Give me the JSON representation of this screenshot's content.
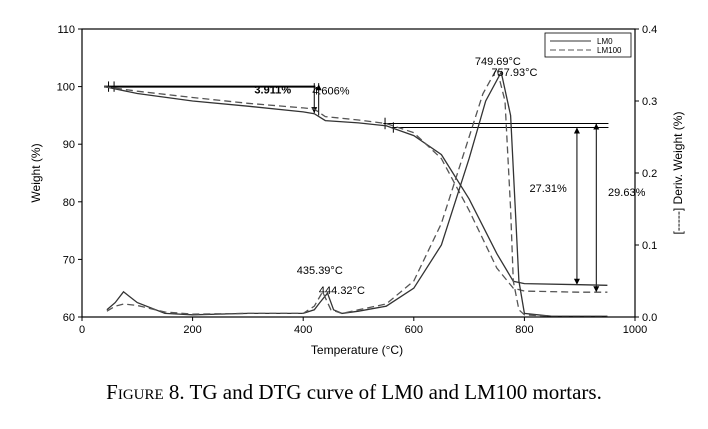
{
  "chart_data": {
    "type": "line",
    "xlabel": "Temperature (°C)",
    "ylabel": "Weight (%)",
    "y2label": "[-----] Deriv. Weight (%)",
    "xlim": [
      0,
      1000
    ],
    "ylim": [
      60,
      110
    ],
    "y2lim": [
      0,
      0.4
    ],
    "x_ticks": [
      0,
      200,
      400,
      600,
      800,
      1000
    ],
    "y_ticks": [
      60,
      70,
      80,
      90,
      100,
      110
    ],
    "y2_ticks": [
      "0.0",
      "0.1",
      "0.2",
      "0.3",
      "0.4"
    ],
    "legend_position": "top-right",
    "series": [
      {
        "name": "LM0",
        "kind": "TG",
        "axis": "left",
        "style": "solid",
        "x": [
          40,
          100,
          200,
          300,
          400,
          420,
          440,
          500,
          550,
          600,
          650,
          700,
          750,
          780,
          800,
          900,
          950
        ],
        "y": [
          100,
          98.8,
          97.5,
          96.6,
          95.6,
          95.3,
          94.1,
          93.7,
          93.2,
          91.5,
          88.2,
          80.5,
          71,
          66.2,
          65.8,
          65.6,
          65.5
        ]
      },
      {
        "name": "LM100",
        "kind": "TG",
        "axis": "left",
        "style": "dashed",
        "x": [
          40,
          100,
          200,
          300,
          400,
          420,
          440,
          500,
          550,
          600,
          650,
          700,
          750,
          780,
          800,
          900,
          950
        ],
        "y": [
          100,
          99.2,
          98.1,
          97.1,
          96.3,
          96.1,
          94.8,
          94.2,
          93.6,
          92,
          87.5,
          78.5,
          68.5,
          65,
          64.5,
          64.3,
          64.3
        ]
      },
      {
        "name": "LM0",
        "kind": "DTG",
        "axis": "right",
        "style": "solid",
        "x": [
          45,
          60,
          75,
          100,
          150,
          200,
          300,
          400,
          420,
          430,
          444,
          455,
          470,
          500,
          550,
          600,
          650,
          700,
          730,
          758,
          775,
          790,
          800,
          850,
          950
        ],
        "y": [
          0.01,
          0.02,
          0.035,
          0.02,
          0.005,
          0.003,
          0.005,
          0.005,
          0.01,
          0.02,
          0.033,
          0.01,
          0.005,
          0.008,
          0.015,
          0.04,
          0.1,
          0.22,
          0.3,
          0.34,
          0.28,
          0.05,
          0.005,
          0.001,
          0.001
        ]
      },
      {
        "name": "LM100",
        "kind": "DTG",
        "axis": "right",
        "style": "dashed",
        "x": [
          45,
          60,
          75,
          100,
          150,
          200,
          300,
          400,
          420,
          435,
          450,
          470,
          500,
          550,
          600,
          650,
          700,
          725,
          750,
          765,
          775,
          780,
          790,
          800,
          850,
          950
        ],
        "y": [
          0.008,
          0.015,
          0.018,
          0.016,
          0.007,
          0.004,
          0.005,
          0.005,
          0.015,
          0.035,
          0.01,
          0.005,
          0.01,
          0.018,
          0.05,
          0.13,
          0.25,
          0.31,
          0.345,
          0.3,
          0.15,
          0.05,
          0.01,
          0.003,
          0.001,
          0.001
        ]
      }
    ],
    "annotations": [
      {
        "text": "749.69°C",
        "x": 752,
        "y2": 0.35
      },
      {
        "text": "757.93°C",
        "x": 782,
        "y2": 0.335
      },
      {
        "text": "435.39°C",
        "x": 430,
        "y2": 0.06
      },
      {
        "text": "444.32°C",
        "x": 470,
        "y2": 0.032
      },
      {
        "text": "3.911%",
        "x": 345,
        "y": 98.8
      },
      {
        "text": "4.606%",
        "x": 450,
        "y": 98.6
      },
      {
        "text": "27.31%",
        "x": 843,
        "y": 81.7
      },
      {
        "text": "29.63%",
        "x": 985,
        "y": 81
      }
    ]
  },
  "caption": {
    "figure_label": "Figure 8.",
    "text": " TG and DTG curve of LM0 and LM100 mortars."
  },
  "colors": {
    "ink": "#000000",
    "curve": "#333333",
    "dash": "#555555"
  }
}
